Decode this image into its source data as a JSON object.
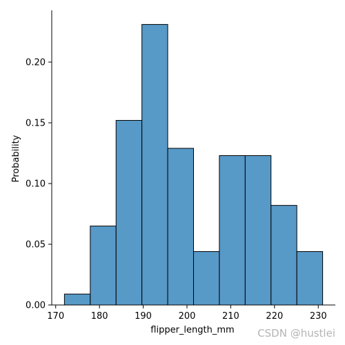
{
  "chart_data": {
    "type": "bar",
    "histogram": true,
    "bins": [
      {
        "x0": 172.0,
        "x1": 177.9,
        "value": 0.009
      },
      {
        "x0": 177.9,
        "x1": 183.8,
        "value": 0.065
      },
      {
        "x0": 183.8,
        "x1": 189.7,
        "value": 0.152
      },
      {
        "x0": 189.7,
        "x1": 195.6,
        "value": 0.231
      },
      {
        "x0": 195.6,
        "x1": 201.5,
        "value": 0.129
      },
      {
        "x0": 201.5,
        "x1": 207.4,
        "value": 0.044
      },
      {
        "x0": 207.4,
        "x1": 213.3,
        "value": 0.123
      },
      {
        "x0": 213.3,
        "x1": 219.2,
        "value": 0.123
      },
      {
        "x0": 219.2,
        "x1": 225.1,
        "value": 0.082
      },
      {
        "x0": 225.1,
        "x1": 231.0,
        "value": 0.044
      }
    ],
    "title": "",
    "xlabel": "flipper_length_mm",
    "ylabel": "Probability",
    "xlim": [
      169.1,
      233.9
    ],
    "ylim": [
      0,
      0.2426
    ],
    "xticks": [
      170,
      180,
      190,
      200,
      210,
      220,
      230
    ],
    "xtick_labels": [
      "170",
      "180",
      "190",
      "200",
      "210",
      "220",
      "230"
    ],
    "yticks": [
      0.0,
      0.05,
      0.1,
      0.15,
      0.2
    ],
    "ytick_labels": [
      "0.00",
      "0.05",
      "0.10",
      "0.15",
      "0.20"
    ],
    "bar_color": "#5799c7",
    "edge_color": "#000000",
    "grid": false,
    "legend": "none"
  },
  "watermark": "CSDN @hustlei"
}
